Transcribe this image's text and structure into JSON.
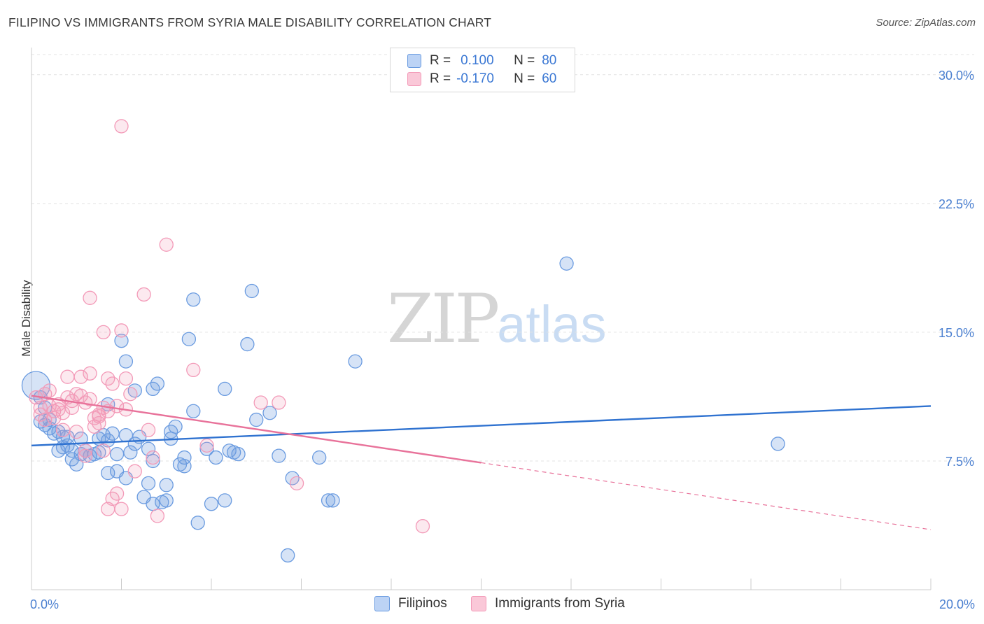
{
  "title": "FILIPINO VS IMMIGRANTS FROM SYRIA MALE DISABILITY CORRELATION CHART",
  "source": "Source: ZipAtlas.com",
  "watermark": {
    "zip": "ZIP",
    "atlas": "atlas"
  },
  "legend": {
    "r_label": "R =",
    "n_label": "N =",
    "series": [
      {
        "r": "0.100",
        "n": "80"
      },
      {
        "r": "-0.170",
        "n": "60"
      }
    ]
  },
  "bottom_legend": [
    "Filipinos",
    "Immigrants from Syria"
  ],
  "chart_data": {
    "type": "scatter",
    "title": "FILIPINO VS IMMIGRANTS FROM SYRIA MALE DISABILITY CORRELATION CHART",
    "xlabel": "",
    "ylabel": "Male Disability",
    "xlim": [
      0,
      20
    ],
    "ylim": [
      0,
      31.5
    ],
    "x_tick_labels": [
      "0.0%",
      "20.0%"
    ],
    "y_ticks": [
      7.5,
      15.0,
      22.5,
      30.0
    ],
    "y_tick_labels": [
      "7.5%",
      "15.0%",
      "22.5%",
      "30.0%"
    ],
    "colors": {
      "filipinos": "#6a9be0",
      "syria": "#f39ab8",
      "filipinos_line": "#2f72d0",
      "syria_line": "#e8729a"
    },
    "series": [
      {
        "name": "Filipinos",
        "r": 0.1,
        "n": 80,
        "trend": {
          "x0": 0,
          "y0": 8.4,
          "x1": 20,
          "y1": 10.7
        },
        "points": [
          [
            0.1,
            11.9
          ],
          [
            0.2,
            11.2
          ],
          [
            0.3,
            10.6
          ],
          [
            0.2,
            9.8
          ],
          [
            0.4,
            9.4
          ],
          [
            0.5,
            9.1
          ],
          [
            0.6,
            9.2
          ],
          [
            0.7,
            8.9
          ],
          [
            0.7,
            8.3
          ],
          [
            0.8,
            8.4
          ],
          [
            0.9,
            7.6
          ],
          [
            0.6,
            8.1
          ],
          [
            0.9,
            8.1
          ],
          [
            1.1,
            7.9
          ],
          [
            1.1,
            8.8
          ],
          [
            1.2,
            8.1
          ],
          [
            1.3,
            7.8
          ],
          [
            1.4,
            7.9
          ],
          [
            1.5,
            8.0
          ],
          [
            1.5,
            8.8
          ],
          [
            1.6,
            9.0
          ],
          [
            1.7,
            8.7
          ],
          [
            1.7,
            10.8
          ],
          [
            1.7,
            6.8
          ],
          [
            1.8,
            9.1
          ],
          [
            1.9,
            7.9
          ],
          [
            1.9,
            6.9
          ],
          [
            2.0,
            14.5
          ],
          [
            2.1,
            6.5
          ],
          [
            2.1,
            13.3
          ],
          [
            2.1,
            9.0
          ],
          [
            2.2,
            8.0
          ],
          [
            2.3,
            8.5
          ],
          [
            2.4,
            8.9
          ],
          [
            2.5,
            5.4
          ],
          [
            2.6,
            6.2
          ],
          [
            2.6,
            8.2
          ],
          [
            2.7,
            11.7
          ],
          [
            2.7,
            7.5
          ],
          [
            2.7,
            5.0
          ],
          [
            2.8,
            12.0
          ],
          [
            2.9,
            5.1
          ],
          [
            3.0,
            6.1
          ],
          [
            3.0,
            5.2
          ],
          [
            3.1,
            8.8
          ],
          [
            3.1,
            9.2
          ],
          [
            3.2,
            9.5
          ],
          [
            3.3,
            7.3
          ],
          [
            3.4,
            7.7
          ],
          [
            3.4,
            7.2
          ],
          [
            3.5,
            14.6
          ],
          [
            3.6,
            16.9
          ],
          [
            3.6,
            10.4
          ],
          [
            3.7,
            3.9
          ],
          [
            3.9,
            8.2
          ],
          [
            4.0,
            5.0
          ],
          [
            4.1,
            7.7
          ],
          [
            4.3,
            11.7
          ],
          [
            4.3,
            5.2
          ],
          [
            4.4,
            8.1
          ],
          [
            4.5,
            8.0
          ],
          [
            4.6,
            7.9
          ],
          [
            4.8,
            14.3
          ],
          [
            4.9,
            17.4
          ],
          [
            5.0,
            9.9
          ],
          [
            5.3,
            10.3
          ],
          [
            5.5,
            7.8
          ],
          [
            5.7,
            2.0
          ],
          [
            5.8,
            6.5
          ],
          [
            6.4,
            7.7
          ],
          [
            6.6,
            5.2
          ],
          [
            6.7,
            5.2
          ],
          [
            7.2,
            13.3
          ],
          [
            11.9,
            19.0
          ],
          [
            16.6,
            8.5
          ],
          [
            0.4,
            9.9
          ],
          [
            1.0,
            7.3
          ],
          [
            0.3,
            9.6
          ],
          [
            0.8,
            8.9
          ],
          [
            2.3,
            11.6
          ]
        ]
      },
      {
        "name": "Immigrants from Syria",
        "r": -0.17,
        "n": 60,
        "trend": {
          "x0": 0,
          "y0": 11.3,
          "x1": 10,
          "y1": 7.4
        },
        "trend_dashed": {
          "x0": 10,
          "y0": 7.4,
          "x1": 20,
          "y1": 3.5
        },
        "points": [
          [
            0.1,
            11.2
          ],
          [
            0.2,
            10.6
          ],
          [
            0.2,
            10.2
          ],
          [
            0.3,
            11.4
          ],
          [
            0.3,
            9.9
          ],
          [
            0.4,
            10.7
          ],
          [
            0.4,
            11.6
          ],
          [
            0.5,
            10.4
          ],
          [
            0.5,
            10.0
          ],
          [
            0.6,
            10.8
          ],
          [
            0.6,
            10.5
          ],
          [
            0.7,
            10.3
          ],
          [
            0.7,
            9.3
          ],
          [
            0.8,
            12.4
          ],
          [
            0.8,
            11.2
          ],
          [
            0.9,
            11.0
          ],
          [
            0.9,
            10.6
          ],
          [
            1.0,
            11.4
          ],
          [
            1.0,
            9.2
          ],
          [
            1.1,
            11.3
          ],
          [
            1.1,
            12.4
          ],
          [
            1.2,
            10.9
          ],
          [
            1.2,
            7.8
          ],
          [
            1.2,
            8.1
          ],
          [
            1.3,
            17.0
          ],
          [
            1.3,
            12.6
          ],
          [
            1.3,
            11.1
          ],
          [
            1.4,
            9.5
          ],
          [
            1.4,
            10.0
          ],
          [
            1.5,
            10.1
          ],
          [
            1.5,
            10.2
          ],
          [
            1.5,
            9.7
          ],
          [
            1.6,
            15.0
          ],
          [
            1.6,
            8.1
          ],
          [
            1.6,
            10.6
          ],
          [
            1.7,
            12.3
          ],
          [
            1.7,
            10.4
          ],
          [
            1.7,
            4.7
          ],
          [
            1.8,
            12.0
          ],
          [
            1.8,
            5.3
          ],
          [
            1.9,
            5.6
          ],
          [
            1.9,
            10.7
          ],
          [
            2.0,
            4.7
          ],
          [
            2.0,
            15.1
          ],
          [
            2.1,
            10.5
          ],
          [
            2.1,
            12.3
          ],
          [
            2.0,
            27.0
          ],
          [
            2.2,
            11.4
          ],
          [
            2.3,
            6.9
          ],
          [
            2.5,
            17.2
          ],
          [
            2.6,
            9.3
          ],
          [
            2.7,
            7.7
          ],
          [
            2.8,
            4.3
          ],
          [
            3.0,
            20.1
          ],
          [
            3.6,
            12.8
          ],
          [
            3.9,
            8.4
          ],
          [
            5.1,
            10.9
          ],
          [
            5.5,
            10.9
          ],
          [
            5.9,
            6.2
          ],
          [
            8.7,
            3.7
          ]
        ]
      }
    ]
  }
}
